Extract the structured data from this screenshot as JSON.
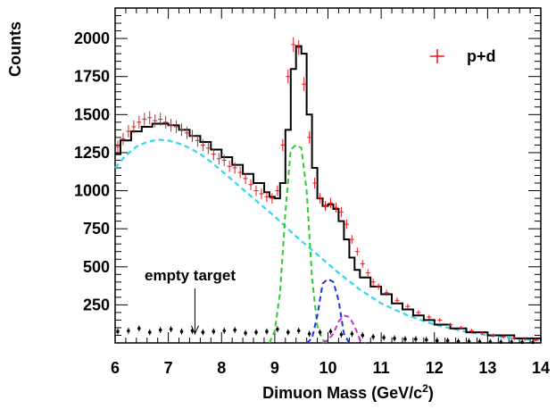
{
  "chart_data": {
    "type": "histogram",
    "xlabel": "Dimuon Mass (GeV/c",
    "xlabel_sup": "2",
    "xlabel_close": ")",
    "ylabel": "Counts",
    "xlim": [
      6,
      14
    ],
    "ylim": [
      0,
      2200
    ],
    "x_ticks": [
      6,
      7,
      8,
      9,
      10,
      11,
      12,
      13,
      14
    ],
    "y_ticks": [
      250,
      500,
      750,
      1000,
      1250,
      1500,
      1750,
      2000
    ],
    "legend": {
      "label": "p+d",
      "position": "top-right",
      "color": "#e8141b"
    },
    "annotation": {
      "text": "empty target",
      "arrow_to": [
        7.5,
        60
      ]
    },
    "colors": {
      "data": "#e8141b",
      "total": "#000000",
      "continuum": "#33d6ee",
      "upsilon1s": "#2ecc2e",
      "upsilon2s": "#2233dd",
      "upsilon3s": "#cc33cc",
      "empty_target": "#000000"
    },
    "series": [
      {
        "name": "p+d",
        "style": "data points with error bars",
        "x": [
          6.05,
          6.15,
          6.25,
          6.35,
          6.45,
          6.55,
          6.65,
          6.75,
          6.85,
          6.95,
          7.05,
          7.15,
          7.25,
          7.35,
          7.45,
          7.55,
          7.65,
          7.75,
          7.85,
          7.95,
          8.05,
          8.15,
          8.25,
          8.35,
          8.45,
          8.55,
          8.65,
          8.75,
          8.85,
          8.95,
          9.05,
          9.15,
          9.25,
          9.35,
          9.45,
          9.55,
          9.65,
          9.75,
          9.85,
          9.95,
          10.05,
          10.15,
          10.25,
          10.35,
          10.45,
          10.55,
          10.65,
          10.75,
          10.85,
          10.95,
          11.1,
          11.3,
          11.5,
          11.7,
          11.9,
          12.1,
          12.3,
          12.5,
          12.7,
          12.9,
          13.1,
          13.3,
          13.5,
          13.7,
          13.9
        ],
        "y": [
          1290,
          1340,
          1390,
          1420,
          1450,
          1470,
          1480,
          1460,
          1470,
          1450,
          1430,
          1420,
          1400,
          1380,
          1360,
          1330,
          1300,
          1280,
          1240,
          1210,
          1200,
          1160,
          1150,
          1120,
          1080,
          1040,
          1000,
          980,
          960,
          950,
          1000,
          1300,
          1750,
          1960,
          1940,
          1700,
          1350,
          1050,
          950,
          900,
          920,
          890,
          860,
          780,
          680,
          600,
          520,
          460,
          400,
          370,
          330,
          280,
          240,
          200,
          170,
          150,
          120,
          100,
          80,
          65,
          50,
          40,
          30,
          25,
          20
        ]
      },
      {
        "name": "total fit",
        "x": [
          6.0,
          6.1,
          6.3,
          6.5,
          6.7,
          6.9,
          7.0,
          7.2,
          7.4,
          7.6,
          7.8,
          8.0,
          8.2,
          8.4,
          8.6,
          8.8,
          8.9,
          9.0,
          9.1,
          9.2,
          9.3,
          9.4,
          9.5,
          9.6,
          9.7,
          9.8,
          9.9,
          10.0,
          10.1,
          10.2,
          10.3,
          10.4,
          10.5,
          10.6,
          10.8,
          11.0,
          11.2,
          11.4,
          11.6,
          11.8,
          12.0,
          12.3,
          12.6,
          13.0,
          13.5,
          14.0
        ],
        "y": [
          1240,
          1330,
          1390,
          1420,
          1440,
          1440,
          1430,
          1400,
          1360,
          1320,
          1270,
          1220,
          1170,
          1110,
          1050,
          990,
          960,
          950,
          1050,
          1400,
          1800,
          1950,
          1900,
          1500,
          1150,
          950,
          900,
          910,
          880,
          800,
          680,
          560,
          480,
          430,
          370,
          320,
          260,
          220,
          180,
          150,
          120,
          95,
          70,
          50,
          30,
          15
        ]
      },
      {
        "name": "continuum",
        "style": "dashed",
        "x": [
          6.0,
          6.2,
          6.4,
          6.6,
          6.8,
          7.0,
          7.2,
          7.4,
          7.6,
          7.8,
          8.0,
          8.3,
          8.6,
          9.0,
          9.4,
          9.8,
          10.2,
          10.6,
          11.0,
          11.5,
          12.0,
          12.5,
          13.0,
          13.5,
          14.0
        ],
        "y": [
          1150,
          1230,
          1290,
          1320,
          1335,
          1330,
          1310,
          1280,
          1240,
          1190,
          1130,
          1040,
          950,
          830,
          700,
          580,
          460,
          350,
          260,
          180,
          120,
          80,
          50,
          30,
          15
        ]
      },
      {
        "name": "upsilon 1S",
        "style": "dashed",
        "x": [
          8.9,
          9.0,
          9.1,
          9.2,
          9.3,
          9.4,
          9.5,
          9.6,
          9.7,
          9.8,
          9.9,
          10.0
        ],
        "y": [
          0,
          80,
          330,
          860,
          1270,
          1300,
          1280,
          1000,
          430,
          110,
          20,
          0
        ]
      },
      {
        "name": "upsilon 2S",
        "style": "dashed",
        "x": [
          9.6,
          9.7,
          9.8,
          9.9,
          10.0,
          10.1,
          10.2,
          10.3,
          10.4
        ],
        "y": [
          0,
          30,
          180,
          390,
          420,
          400,
          280,
          60,
          0
        ]
      },
      {
        "name": "upsilon 3S",
        "style": "dashed",
        "x": [
          9.9,
          10.0,
          10.1,
          10.2,
          10.3,
          10.4,
          10.5,
          10.6,
          10.7
        ],
        "y": [
          0,
          20,
          60,
          140,
          180,
          170,
          110,
          20,
          0
        ]
      },
      {
        "name": "empty target",
        "style": "points",
        "x": [
          6.05,
          6.25,
          6.45,
          6.65,
          6.85,
          7.05,
          7.25,
          7.45,
          7.65,
          7.85,
          8.05,
          8.25,
          8.45,
          8.65,
          8.85,
          9.05,
          9.25,
          9.45,
          9.65,
          9.85,
          10.05,
          10.25,
          10.45,
          10.65,
          10.85,
          11.05,
          11.25,
          11.45,
          11.65,
          11.85,
          12.05,
          12.25,
          12.45,
          12.65,
          12.85,
          13.05,
          13.25,
          13.45,
          13.65,
          13.85
        ],
        "y": [
          75,
          80,
          95,
          70,
          85,
          90,
          75,
          80,
          70,
          75,
          80,
          85,
          65,
          70,
          75,
          90,
          70,
          80,
          60,
          70,
          75,
          55,
          60,
          50,
          40,
          35,
          30,
          25,
          25,
          20,
          15,
          15,
          10,
          10,
          8,
          6,
          5,
          5,
          4,
          3
        ]
      }
    ]
  }
}
